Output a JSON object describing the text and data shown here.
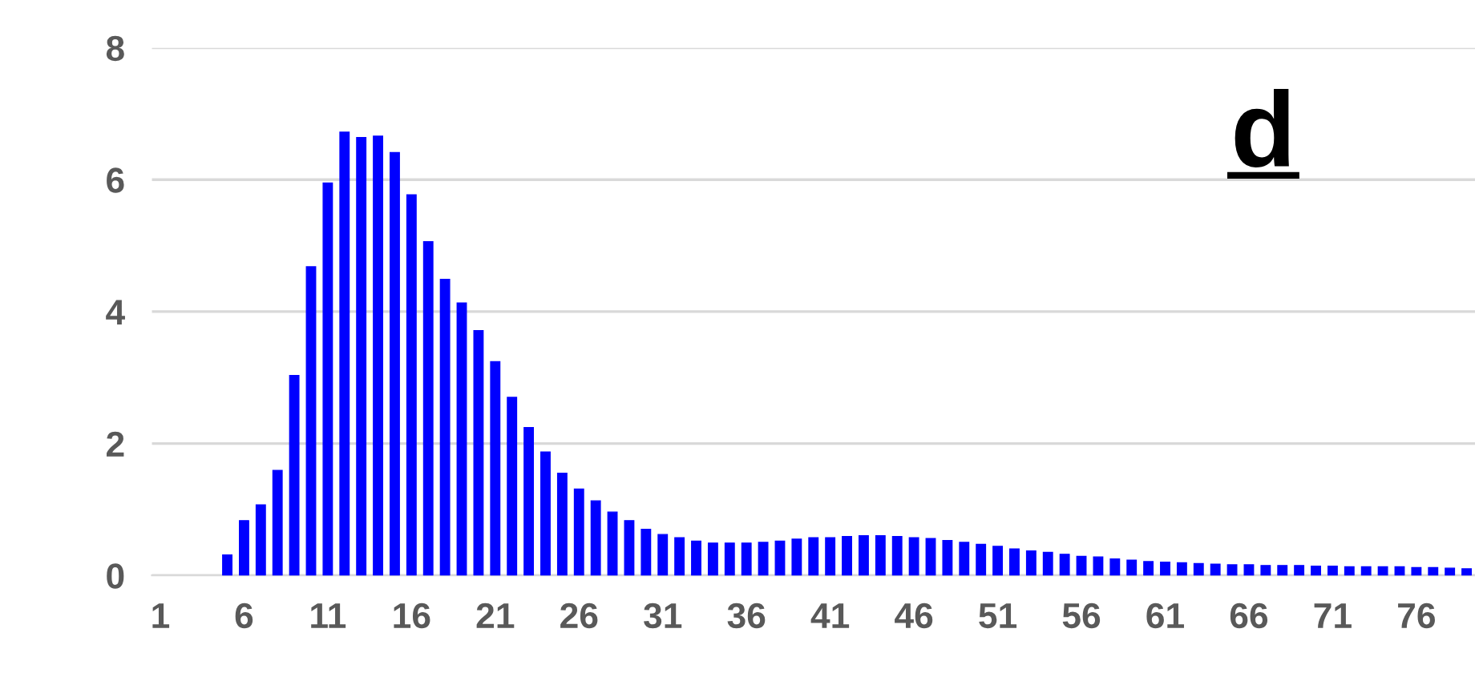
{
  "chart_data": {
    "type": "bar",
    "title": "d",
    "categories": [
      "1",
      null,
      null,
      null,
      null,
      "6",
      null,
      null,
      null,
      null,
      "11",
      null,
      null,
      null,
      null,
      "16",
      null,
      null,
      null,
      null,
      "21",
      null,
      null,
      null,
      null,
      "26",
      null,
      null,
      null,
      null,
      "31",
      null,
      null,
      null,
      null,
      "36",
      null,
      null,
      null,
      null,
      "41",
      null,
      null,
      null,
      null,
      "46",
      null,
      null,
      null,
      null,
      "51",
      null,
      null,
      null,
      null,
      "56",
      null,
      null,
      null,
      null,
      "61",
      null,
      null,
      null,
      null,
      "66",
      null,
      null,
      null,
      null,
      "71",
      null,
      null,
      null,
      null,
      "76",
      null,
      null,
      null
    ],
    "values": [
      null,
      null,
      null,
      null,
      0.31,
      0.83,
      1.07,
      1.59,
      3.03,
      4.68,
      5.95,
      6.72,
      6.64,
      6.66,
      6.41,
      5.77,
      5.06,
      4.49,
      4.13,
      3.71,
      3.24,
      2.7,
      2.24,
      1.87,
      1.55,
      1.31,
      1.13,
      0.96,
      0.83,
      0.7,
      0.62,
      0.57,
      0.52,
      0.49,
      0.49,
      0.49,
      0.5,
      0.52,
      0.55,
      0.57,
      0.57,
      0.59,
      0.6,
      0.6,
      0.59,
      0.57,
      0.56,
      0.53,
      0.5,
      0.47,
      0.44,
      0.4,
      0.37,
      0.35,
      0.32,
      0.29,
      0.28,
      0.25,
      0.23,
      0.21,
      0.2,
      0.19,
      0.18,
      0.17,
      0.16,
      0.16,
      0.15,
      0.15,
      0.15,
      0.14,
      0.14,
      0.13,
      0.13,
      0.13,
      0.13,
      0.12,
      0.12,
      0.11,
      0.1
    ],
    "color": "#0000ff",
    "ylim": [
      0,
      8
    ],
    "yticks": [
      0,
      2,
      4,
      6,
      8
    ],
    "grid": "y"
  }
}
